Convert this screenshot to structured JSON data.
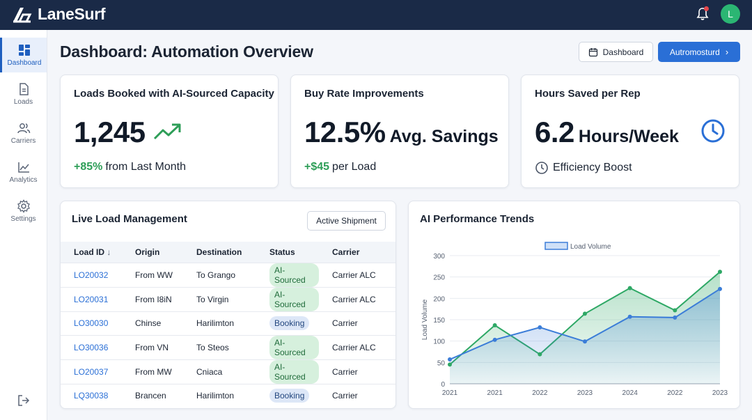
{
  "app": {
    "name": "LaneSurf",
    "avatar_initial": "L"
  },
  "sidebar": {
    "items": [
      {
        "label": "Dashboard",
        "icon": "dashboard-icon",
        "active": true
      },
      {
        "label": "Loads",
        "icon": "document-icon",
        "active": false
      },
      {
        "label": "Carriers",
        "icon": "users-icon",
        "active": false
      },
      {
        "label": "Analytics",
        "icon": "line-chart-icon",
        "active": false
      },
      {
        "label": "Settings",
        "icon": "gear-icon",
        "active": false
      }
    ]
  },
  "header": {
    "title": "Dashboard: Automation Overview",
    "dashboard_button": "Dashboard",
    "automation_button": "Autromosturd"
  },
  "kpis": [
    {
      "title": "Loads Booked with AI-Sourced Capacity",
      "value": "1,245",
      "unit": "",
      "delta": "+85%",
      "delta_text": "from Last Month",
      "icon": "trend-up-icon"
    },
    {
      "title": "Buy Rate Improvements",
      "value": "12.5%",
      "unit": "Avg. Savings",
      "delta": "+$45",
      "delta_text": "per Load",
      "icon": ""
    },
    {
      "title": "Hours Saved per Rep",
      "value": "6.2",
      "unit": "Hours/Week",
      "delta": "",
      "delta_text": "Efficiency Boost",
      "icon": "clock-icon"
    }
  ],
  "loads": {
    "title": "Live Load Management",
    "button": "Active Shipment",
    "columns": [
      "Load ID",
      "Origin",
      "Destination",
      "Status",
      "Carrier"
    ],
    "rows": [
      {
        "id": "LO20032",
        "origin": "From WW",
        "destination": "To Grango",
        "status": "AI-Sourced",
        "carrier": "Carrier ALC"
      },
      {
        "id": "LO20031",
        "origin": "From I8iN",
        "destination": "To Virgin",
        "status": "AI-Sourced",
        "carrier": "Carrier ALC"
      },
      {
        "id": "LO30030",
        "origin": "Chinse",
        "destination": "Harilimton",
        "status": "Booking",
        "carrier": "Carrier"
      },
      {
        "id": "LO30036",
        "origin": "From VN",
        "destination": "To Steos",
        "status": "AI-Sourced",
        "carrier": "Carrier ALC"
      },
      {
        "id": "LO20037",
        "origin": "From MW",
        "destination": "Cniaca",
        "status": "AI-Sourced",
        "carrier": "Carrier"
      },
      {
        "id": "LQ30038",
        "origin": "Brancen",
        "destination": "Harilimton",
        "status": "Booking",
        "carrier": "Carrier"
      }
    ]
  },
  "colors": {
    "accent": "#2a6fd6",
    "green": "#2e9e58",
    "nav": "#1a2a47"
  },
  "chart_data": {
    "type": "area",
    "title": "AI Performance Trends",
    "ylabel": "Load Volume",
    "xlabel": "",
    "ylim": [
      0,
      300
    ],
    "yticks": [
      0,
      50,
      100,
      150,
      200,
      250,
      300
    ],
    "x": [
      "2021",
      "2021",
      "2022",
      "2023",
      "2024",
      "2022",
      "2023"
    ],
    "legend_position": "top-center",
    "grid": true,
    "series": [
      {
        "name": "Load Volume",
        "color": "#3b7dd8",
        "values": [
          57,
          103,
          132,
          99,
          157,
          155,
          222
        ]
      },
      {
        "name": "",
        "color": "#2ea865",
        "values": [
          45,
          137,
          69,
          164,
          224,
          172,
          262
        ]
      }
    ]
  }
}
